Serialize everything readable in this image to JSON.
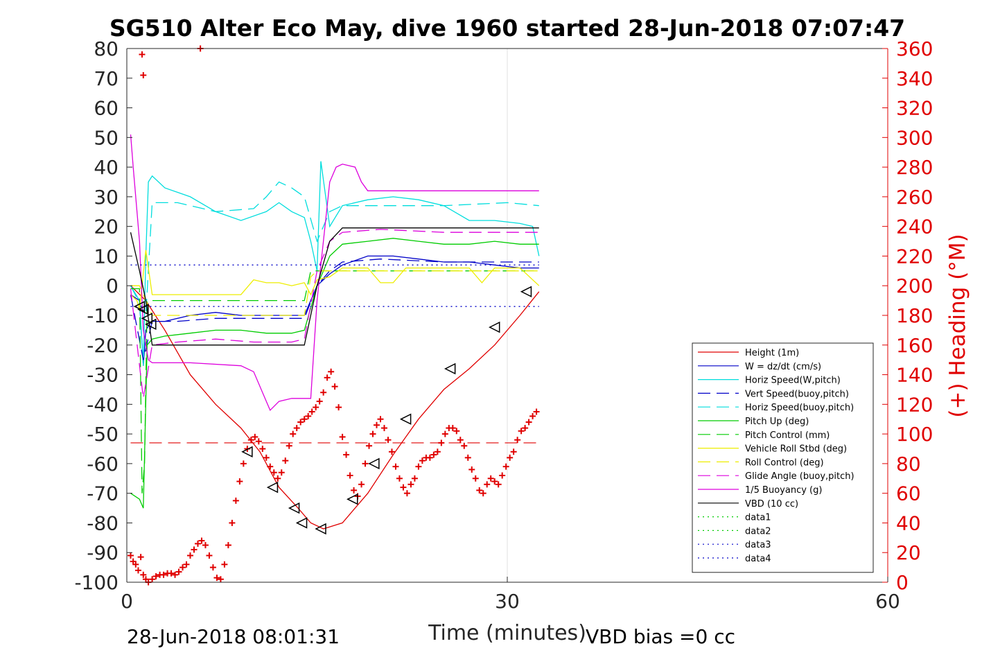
{
  "chart_data": {
    "type": "line",
    "title": "SG510 Alter Eco May, dive 1960 started 28-Jun-2018 07:07:47",
    "xlabel": "Time (minutes)",
    "ylabel_left": "",
    "ylabel_right": "(+) Heading (°M)",
    "xlim": [
      0,
      60
    ],
    "ylim_left": [
      -100,
      80
    ],
    "ylim_right": [
      0,
      360
    ],
    "x_ticks": [
      "0",
      "30",
      "60"
    ],
    "y_ticks_left": [
      "80",
      "70",
      "60",
      "50",
      "40",
      "30",
      "20",
      "10",
      "0",
      "-10",
      "-20",
      "-30",
      "-40",
      "-50",
      "-60",
      "-70",
      "-80",
      "-90",
      "-100"
    ],
    "y_ticks_right": [
      "360",
      "340",
      "320",
      "300",
      "280",
      "260",
      "240",
      "220",
      "200",
      "180",
      "160",
      "140",
      "120",
      "100",
      "80",
      "60",
      "40",
      "20",
      "0"
    ],
    "grid": "x only at 30",
    "legend_position": "lower-right",
    "footer_left": "28-Jun-2018 08:01:31",
    "footer_right": "VBD bias =0 cc",
    "series": [
      {
        "name": "Height (1m)",
        "color": "#e00000",
        "style": "solid",
        "x": [
          0.3,
          1.5,
          3,
          5,
          7,
          9,
          10.5,
          12,
          13.5,
          14.5,
          15.5,
          17,
          19,
          21,
          23,
          25,
          27,
          29,
          31,
          32.5
        ],
        "y": [
          0,
          -5,
          -15,
          -30,
          -40,
          -48,
          -56,
          -68,
          -75,
          -80,
          -82,
          -80,
          -70,
          -57,
          -45,
          -35,
          -28,
          -20,
          -10,
          -2
        ]
      },
      {
        "name": "W = dz/dt (cm/s)",
        "color": "#0000c8",
        "style": "solid",
        "x": [
          0.3,
          1,
          1.3,
          1.5,
          1.8,
          2,
          3,
          5,
          7,
          9,
          11,
          13,
          14,
          15,
          16,
          17,
          19,
          21,
          23,
          25,
          27,
          29,
          31,
          32.5
        ],
        "y": [
          -3,
          -5,
          -27,
          -15,
          -13,
          -12,
          -12,
          -10,
          -9,
          -10,
          -10,
          -10,
          -10,
          0,
          4,
          7,
          10,
          10,
          9,
          8,
          8,
          7,
          6,
          6
        ]
      },
      {
        "name": "Horiz Speed(W,pitch)",
        "color": "#00dddd",
        "style": "solid",
        "x": [
          0.3,
          1,
          1.3,
          1.5,
          1.7,
          2,
          3,
          5,
          7,
          9,
          11,
          12,
          13,
          14,
          14.5,
          15,
          15.3,
          16,
          17,
          19,
          21,
          23,
          25,
          27,
          29,
          31,
          32,
          32.5
        ],
        "y": [
          0,
          -5,
          -27,
          10,
          35,
          37,
          33,
          30,
          25,
          22,
          25,
          28,
          25,
          23,
          15,
          5,
          42,
          20,
          27,
          29,
          30,
          29,
          27,
          22,
          22,
          21,
          20,
          10
        ]
      },
      {
        "name": "Vert Speed(buoy,pitch)",
        "color": "#0000c8",
        "style": "dashed",
        "x": [
          0.3,
          1.3,
          2,
          4,
          7,
          10,
          13,
          14,
          15,
          16,
          17,
          20,
          25,
          30,
          32.5
        ],
        "y": [
          -3,
          -25,
          -12,
          -12,
          -11,
          -11,
          -11,
          -11,
          0,
          5,
          8,
          9,
          8,
          8,
          8
        ]
      },
      {
        "name": "Horiz Speed(buoy,pitch)",
        "color": "#00dddd",
        "style": "dashed",
        "x": [
          0.3,
          1.5,
          2,
          4,
          7,
          10,
          11,
          12,
          13,
          14,
          15,
          16,
          17,
          20,
          25,
          30,
          32.5
        ],
        "y": [
          0,
          -10,
          28,
          28,
          25,
          26,
          30,
          35,
          33,
          30,
          15,
          25,
          27,
          27,
          27,
          28,
          27
        ]
      },
      {
        "name": "Pitch Up (deg)",
        "color": "#00cc00",
        "style": "solid",
        "x": [
          0.3,
          1,
          1.3,
          1.6,
          2,
          3,
          5,
          7,
          9,
          11,
          13,
          14,
          15,
          16,
          17,
          19,
          21,
          23,
          25,
          27,
          29,
          31,
          32.5
        ],
        "y": [
          -70,
          -72,
          -75,
          -20,
          -18,
          -17,
          -16,
          -15,
          -15,
          -16,
          -16,
          -15,
          0,
          10,
          14,
          15,
          16,
          15,
          14,
          14,
          15,
          14,
          14
        ]
      },
      {
        "name": "Pitch Control (mm)",
        "color": "#00cc00",
        "style": "dashed",
        "x": [
          0.3,
          1,
          1.2,
          1.4,
          1.6,
          2,
          5,
          10,
          14,
          14.5,
          15.5,
          20,
          25,
          30,
          32.5
        ],
        "y": [
          -1,
          -1,
          -70,
          -60,
          -5,
          -5,
          -5,
          -5,
          -5,
          5,
          5,
          5,
          5,
          5,
          5
        ]
      },
      {
        "name": "Vehicle Roll Stbd (deg)",
        "color": "#eeee00",
        "style": "solid",
        "x": [
          0.3,
          0.8,
          1,
          1.5,
          2,
          3,
          5,
          8,
          9,
          10,
          11,
          12,
          13,
          14,
          14.5,
          15,
          16,
          17,
          18,
          19,
          20,
          21,
          22,
          23,
          25,
          27,
          28,
          29,
          31,
          32.5
        ],
        "y": [
          -3,
          -5,
          -8,
          12,
          -3,
          -3,
          -3,
          -3,
          -3,
          2,
          1,
          1,
          0,
          1,
          -3,
          2,
          3,
          6,
          6,
          6,
          1,
          1,
          6,
          6,
          6,
          6,
          1,
          6,
          6,
          0
        ]
      },
      {
        "name": "Roll Control (deg)",
        "color": "#eeee00",
        "style": "dashed",
        "x": [
          0.3,
          1,
          2,
          5,
          8,
          10,
          12,
          14,
          14.5,
          15,
          20,
          25,
          30,
          32.5
        ],
        "y": [
          0,
          0,
          -10,
          -10,
          -10,
          -10,
          -10,
          -10,
          3,
          5,
          5,
          5,
          5,
          5
        ]
      },
      {
        "name": "Glide Angle (buoy,pitch)",
        "color": "#dd00dd",
        "style": "dashed",
        "x": [
          0.3,
          1.3,
          2,
          4,
          7,
          10,
          13,
          14,
          15,
          16,
          17,
          20,
          25,
          30,
          32.5
        ],
        "y": [
          -1,
          -38,
          -20,
          -19,
          -18,
          -19,
          -19,
          -18,
          5,
          15,
          18,
          19,
          18,
          18,
          18
        ]
      },
      {
        "name": "1/5 Buoyancy (g)",
        "color": "#dd00dd",
        "style": "solid",
        "x": [
          0.3,
          0.5,
          1,
          1.3,
          1.7,
          2,
          5,
          9,
          10,
          11,
          11.3,
          12,
          13,
          14,
          14.5,
          15,
          16,
          16.5,
          17,
          18,
          18.5,
          19,
          20,
          25,
          30,
          32.5
        ],
        "y": [
          51,
          40,
          15,
          -15,
          -25,
          -26,
          -26,
          -27,
          -29,
          -39,
          -42,
          -39,
          -38,
          -38,
          -38,
          -5,
          35,
          40,
          41,
          40,
          35,
          32,
          32,
          32,
          32,
          32
        ]
      },
      {
        "name": "VBD (10 cc)",
        "color": "#000000",
        "style": "solid",
        "x": [
          0.3,
          1,
          1.5,
          2,
          5,
          10,
          13,
          14,
          15,
          16,
          17,
          20,
          25,
          30,
          32.5
        ],
        "y": [
          18,
          5,
          -5,
          -20,
          -20,
          -20,
          -20,
          -20,
          0,
          15,
          19.5,
          19.5,
          19.5,
          19.5,
          19.5
        ]
      },
      {
        "name": "data1",
        "color": "#00cc00",
        "style": "dotted",
        "x": [],
        "y": []
      },
      {
        "name": "data2",
        "color": "#00cc00",
        "style": "dotted",
        "x": [],
        "y": []
      },
      {
        "name": "data3",
        "color": "#0000c8",
        "style": "dotted",
        "x": [
          0.3,
          32.5
        ],
        "y": [
          7,
          7
        ]
      },
      {
        "name": "data4",
        "color": "#0000c8",
        "style": "dotted",
        "x": [
          0.3,
          32.5
        ],
        "y": [
          -7,
          -7
        ]
      }
    ],
    "reference_lines": [
      {
        "y": -53,
        "color": "#e00000",
        "style": "dashed",
        "x": [
          0.3,
          32.5
        ]
      }
    ],
    "heading_points": {
      "color": "#e00000",
      "marker": "+",
      "axis": "right",
      "x": [
        0.3,
        0.5,
        0.7,
        0.9,
        1.1,
        1.3,
        1.5,
        1.7,
        2,
        2.3,
        2.6,
        2.9,
        3.2,
        3.5,
        3.8,
        4.1,
        4.4,
        4.7,
        5,
        5.3,
        5.6,
        5.9,
        6.2,
        6.5,
        6.8,
        7.1,
        7.4,
        7.7,
        8,
        8.3,
        8.6,
        8.9,
        9.2,
        9.5,
        9.8,
        10.1,
        10.4,
        10.7,
        11,
        11.3,
        11.6,
        11.9,
        12.2,
        12.5,
        12.8,
        13.1,
        13.4,
        13.7,
        14,
        14.3,
        14.6,
        14.9,
        15.2,
        15.5,
        15.8,
        16.1,
        16.4,
        16.7,
        17,
        17.3,
        17.6,
        17.9,
        18.2,
        18.5,
        18.8,
        19.1,
        19.4,
        19.7,
        20,
        20.3,
        20.6,
        20.9,
        21.2,
        21.5,
        21.8,
        22.1,
        22.4,
        22.7,
        23,
        23.3,
        23.6,
        23.9,
        24.2,
        24.5,
        24.8,
        25.1,
        25.4,
        25.7,
        26,
        26.3,
        26.6,
        26.9,
        27.2,
        27.5,
        27.8,
        28.1,
        28.4,
        28.7,
        29,
        29.3,
        29.6,
        29.9,
        30.2,
        30.5,
        30.8,
        31.1,
        31.4,
        31.7,
        32,
        32.3,
        1.2,
        1.3,
        5.8
      ],
      "y": [
        18,
        14,
        12,
        8,
        17,
        5,
        2,
        0,
        2,
        4,
        5,
        5,
        6,
        6,
        5,
        7,
        10,
        12,
        18,
        22,
        26,
        28,
        25,
        18,
        10,
        3,
        2,
        12,
        25,
        40,
        55,
        68,
        80,
        90,
        96,
        98,
        95,
        90,
        84,
        78,
        74,
        70,
        74,
        82,
        92,
        100,
        104,
        108,
        110,
        112,
        115,
        118,
        122,
        128,
        138,
        142,
        132,
        118,
        98,
        86,
        72,
        62,
        58,
        66,
        80,
        92,
        100,
        106,
        110,
        104,
        96,
        88,
        78,
        70,
        64,
        60,
        66,
        70,
        78,
        82,
        84,
        84,
        86,
        88,
        94,
        100,
        104,
        104,
        102,
        96,
        92,
        84,
        76,
        70,
        62,
        60,
        66,
        70,
        68,
        66,
        72,
        78,
        84,
        88,
        96,
        102,
        104,
        108,
        112,
        115,
        356,
        342,
        360
      ]
    },
    "height_markers": {
      "color": "#000000",
      "marker": "triangle",
      "x": [
        1.0,
        1.3,
        1.6,
        1.9,
        9.5,
        11.5,
        13.2,
        13.8,
        15.3,
        17.8,
        19.5,
        22.0,
        25.5,
        29.0,
        31.5
      ],
      "y": [
        -7,
        -8,
        -11,
        -13,
        -56,
        -68,
        -75,
        -80,
        -82,
        -72,
        -60,
        -45,
        -28,
        -14,
        -2
      ]
    }
  }
}
